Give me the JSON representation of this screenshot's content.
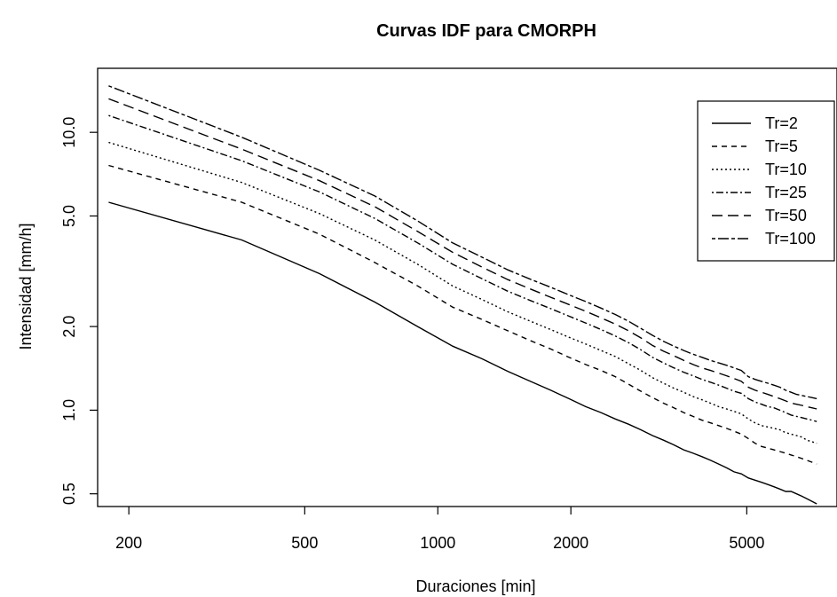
{
  "chart_data": {
    "type": "line",
    "title": "Curvas IDF para CMORPH",
    "xlabel": "Duraciones [min]",
    "ylabel": "Intensidad   [mm/h]",
    "x_scale": "log",
    "y_scale": "log",
    "xlim": [
      170,
      8000
    ],
    "ylim": [
      0.45,
      17
    ],
    "x_ticks": [
      200,
      500,
      1000,
      2000,
      5000
    ],
    "x_tick_labels": [
      "200",
      "500",
      "1000",
      "2000",
      "5000"
    ],
    "y_ticks": [
      0.5,
      1.0,
      2.0,
      5.0,
      10.0
    ],
    "y_tick_labels": [
      "0.5",
      "1.0",
      "2.0",
      "5.0",
      "10.0"
    ],
    "legend_position": "top-right",
    "x": [
      180,
      360,
      540,
      720,
      900,
      1080,
      1260,
      1440,
      1620,
      1800,
      1980,
      2160,
      2340,
      2520,
      2700,
      2880,
      3060,
      3240,
      3420,
      3600,
      3780,
      3960,
      4140,
      4320,
      4500,
      4680,
      4860,
      5040,
      5220,
      5400,
      5580,
      5760,
      5940,
      6120,
      6300,
      6480,
      6660,
      6840,
      7020,
      7200
    ],
    "series": [
      {
        "name": "Tr=2",
        "dash": "solid",
        "values": [
          5.6,
          4.1,
          3.1,
          2.45,
          2.0,
          1.7,
          1.53,
          1.38,
          1.27,
          1.18,
          1.1,
          1.03,
          0.98,
          0.93,
          0.89,
          0.85,
          0.81,
          0.78,
          0.75,
          0.72,
          0.7,
          0.68,
          0.66,
          0.64,
          0.62,
          0.6,
          0.59,
          0.57,
          0.56,
          0.55,
          0.54,
          0.53,
          0.52,
          0.51,
          0.51,
          0.5,
          0.49,
          0.48,
          0.47,
          0.46
        ]
      },
      {
        "name": "Tr=5",
        "dash": "dashed",
        "values": [
          7.6,
          5.6,
          4.3,
          3.4,
          2.8,
          2.35,
          2.12,
          1.93,
          1.78,
          1.66,
          1.55,
          1.46,
          1.39,
          1.32,
          1.24,
          1.17,
          1.11,
          1.06,
          1.02,
          0.98,
          0.95,
          0.92,
          0.9,
          0.88,
          0.86,
          0.84,
          0.82,
          0.79,
          0.76,
          0.74,
          0.73,
          0.72,
          0.71,
          0.7,
          0.69,
          0.68,
          0.67,
          0.66,
          0.65,
          0.64
        ]
      },
      {
        "name": "Tr=10",
        "dash": "dotted",
        "values": [
          9.2,
          6.6,
          5.1,
          4.1,
          3.35,
          2.8,
          2.5,
          2.26,
          2.09,
          1.95,
          1.83,
          1.73,
          1.64,
          1.56,
          1.47,
          1.39,
          1.31,
          1.25,
          1.2,
          1.16,
          1.12,
          1.09,
          1.06,
          1.03,
          1.01,
          0.99,
          0.97,
          0.93,
          0.9,
          0.88,
          0.87,
          0.86,
          0.85,
          0.83,
          0.82,
          0.81,
          0.8,
          0.78,
          0.77,
          0.76
        ]
      },
      {
        "name": "Tr=25",
        "dash": "dashdot",
        "values": [
          11.5,
          7.9,
          6.1,
          4.9,
          4.0,
          3.35,
          2.97,
          2.68,
          2.48,
          2.32,
          2.18,
          2.06,
          1.95,
          1.85,
          1.75,
          1.65,
          1.55,
          1.48,
          1.42,
          1.37,
          1.33,
          1.29,
          1.26,
          1.23,
          1.2,
          1.17,
          1.15,
          1.1,
          1.07,
          1.05,
          1.03,
          1.02,
          1.0,
          0.98,
          0.96,
          0.95,
          0.94,
          0.93,
          0.92,
          0.91
        ]
      },
      {
        "name": "Tr=50",
        "dash": "longdash",
        "values": [
          13.2,
          8.7,
          6.7,
          5.4,
          4.4,
          3.7,
          3.27,
          2.95,
          2.73,
          2.55,
          2.4,
          2.27,
          2.15,
          2.04,
          1.93,
          1.82,
          1.71,
          1.63,
          1.57,
          1.51,
          1.46,
          1.42,
          1.39,
          1.36,
          1.33,
          1.3,
          1.27,
          1.21,
          1.18,
          1.16,
          1.14,
          1.12,
          1.1,
          1.08,
          1.06,
          1.05,
          1.04,
          1.03,
          1.02,
          1.01
        ]
      },
      {
        "name": "Tr=100",
        "dash": "twodash",
        "values": [
          14.7,
          9.6,
          7.3,
          5.9,
          4.8,
          4.0,
          3.55,
          3.2,
          2.96,
          2.77,
          2.6,
          2.46,
          2.33,
          2.21,
          2.09,
          1.97,
          1.86,
          1.77,
          1.7,
          1.64,
          1.59,
          1.55,
          1.51,
          1.48,
          1.45,
          1.42,
          1.39,
          1.32,
          1.29,
          1.27,
          1.25,
          1.23,
          1.21,
          1.18,
          1.16,
          1.14,
          1.13,
          1.12,
          1.11,
          1.1
        ]
      }
    ]
  }
}
